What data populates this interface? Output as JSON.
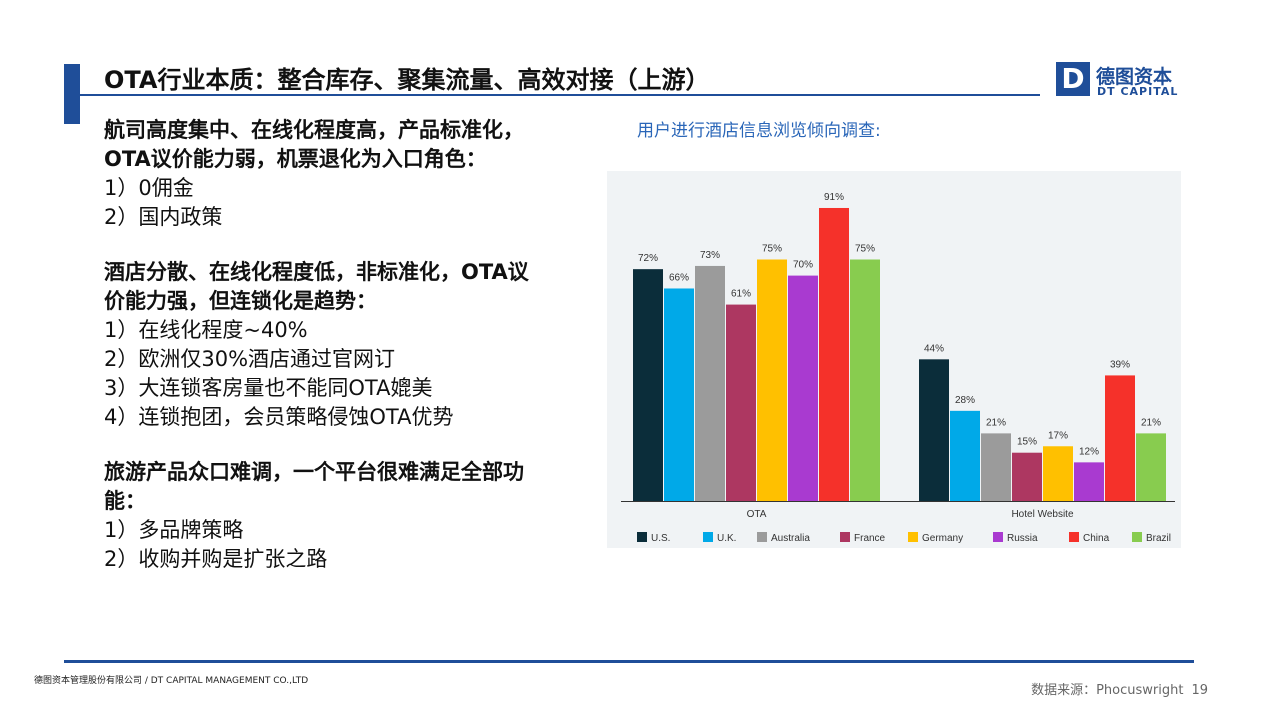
{
  "header": {
    "title": "OTA行业本质：整合库存、聚集流量、高效对接（上游）",
    "logo_cn": "德图资本",
    "logo_en": "DT CAPITAL",
    "logo_mark": "D"
  },
  "content": {
    "sections": [
      {
        "heading_lines": [
          "航司高度集中、在线化程度高，产品标准化，",
          "OTA议价能力弱，机票退化为入口角色："
        ],
        "items": [
          "1）0佣金",
          "2）国内政策"
        ]
      },
      {
        "heading_lines": [
          "酒店分散、在线化程度低，非标准化，OTA议",
          "价能力强，但连锁化是趋势："
        ],
        "items": [
          "1）在线化程度~40%",
          "2）欧洲仅30%酒店通过官网订",
          "3）大连锁客房量也不能同OTA媲美",
          "4）连锁抱团，会员策略侵蚀OTA优势"
        ]
      },
      {
        "heading_lines": [
          "旅游产品众口难调，一个平台很难满足全部功",
          "能："
        ],
        "items": [
          "1）多品牌策略",
          "2）收购并购是扩张之路"
        ]
      }
    ]
  },
  "chart_caption": "用户进行酒店信息浏览倾向调查:",
  "chart_data": {
    "type": "bar",
    "title": "",
    "categories": [
      "OTA",
      "Hotel Website"
    ],
    "series": [
      {
        "name": "U.S.",
        "color": "#0b2d3a",
        "values": [
          72,
          44
        ]
      },
      {
        "name": "U.K.",
        "color": "#00a9e8",
        "values": [
          66,
          28
        ]
      },
      {
        "name": "Australia",
        "color": "#9b9b9b",
        "values": [
          73,
          21
        ]
      },
      {
        "name": "France",
        "color": "#ad3761",
        "values": [
          61,
          15
        ]
      },
      {
        "name": "Germany",
        "color": "#ffc000",
        "values": [
          75,
          17
        ]
      },
      {
        "name": "Russia",
        "color": "#a93ad0",
        "values": [
          70,
          12
        ]
      },
      {
        "name": "China",
        "color": "#f5312a",
        "values": [
          91,
          39
        ]
      },
      {
        "name": "Brazil",
        "color": "#88cc4f",
        "values": [
          75,
          21
        ]
      }
    ],
    "value_suffix": "%",
    "ylim": [
      0,
      100
    ],
    "grid": false,
    "legend": "bottom"
  },
  "footer": {
    "company": "德图资本管理股份有限公司 / DT CAPITAL MANAGEMENT CO.,LTD",
    "source": "数据来源：Phocuswright",
    "page": "19"
  }
}
